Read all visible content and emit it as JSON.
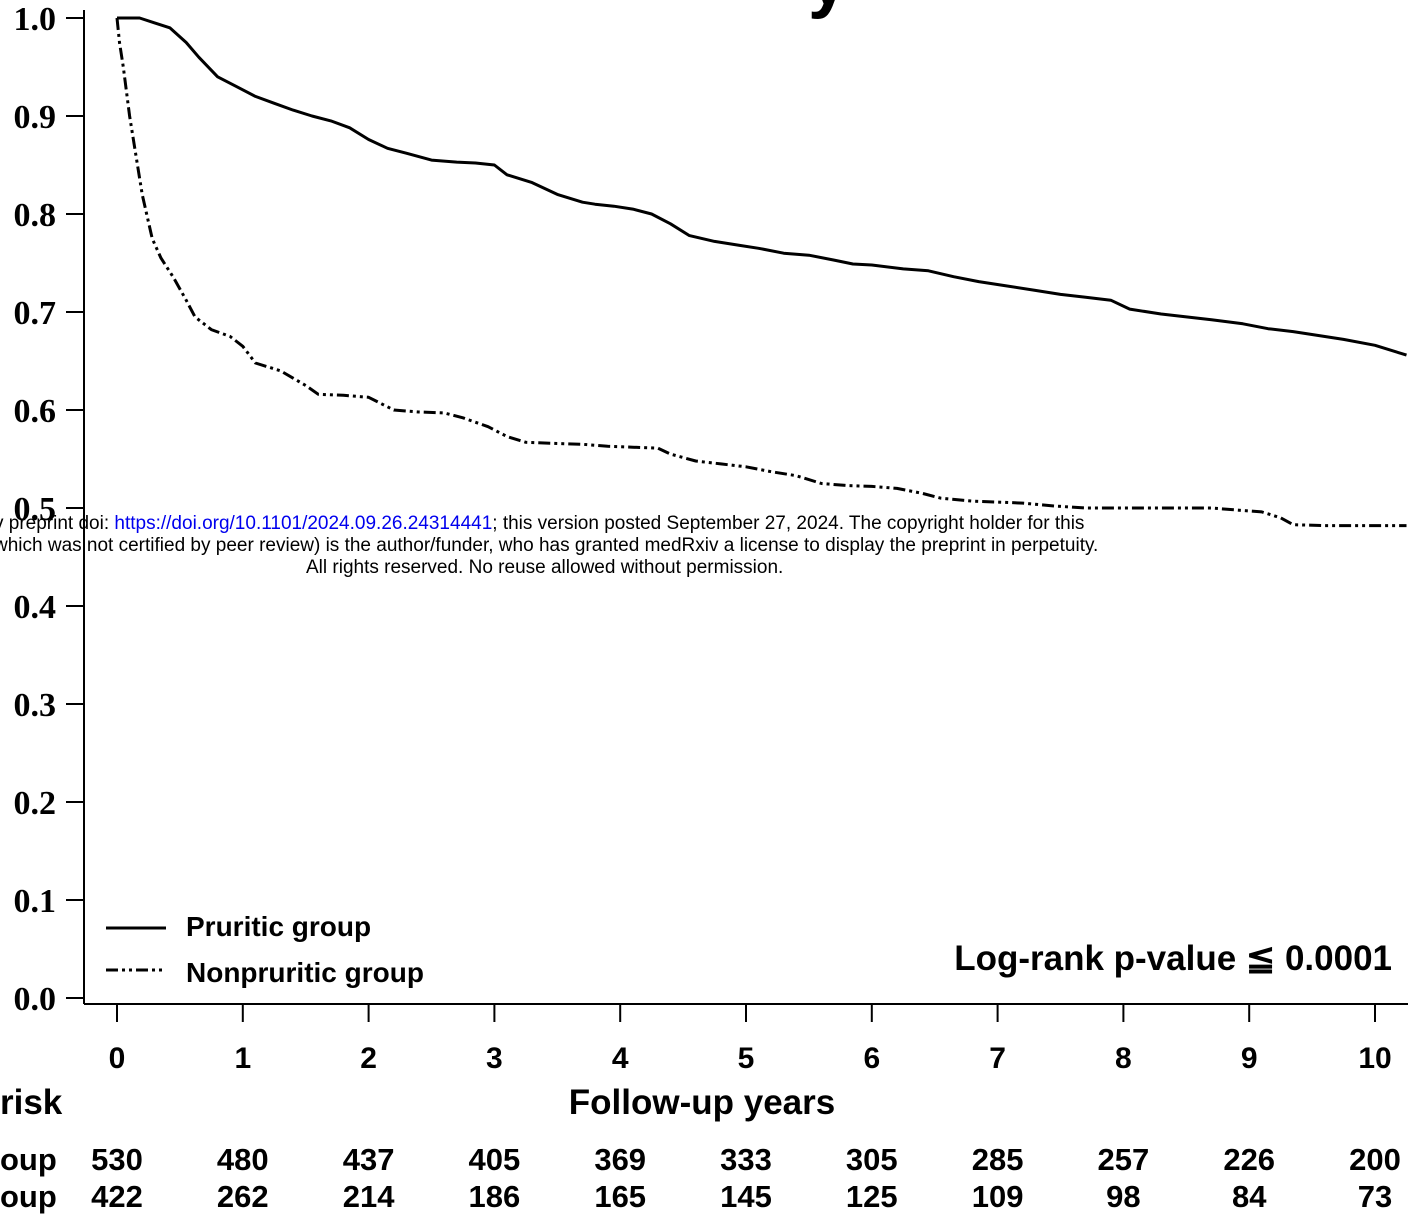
{
  "chart_data": {
    "type": "line",
    "title_fragment": "y",
    "xlabel": "Follow-up years",
    "ylabel": "",
    "xlim": [
      0,
      10.25
    ],
    "ylim": [
      0,
      1.0
    ],
    "x_ticks": [
      "0",
      "1",
      "2",
      "3",
      "4",
      "5",
      "6",
      "7",
      "8",
      "9",
      "10"
    ],
    "y_ticks": [
      "0.0",
      "0.1",
      "0.2",
      "0.3",
      "0.4",
      "0.5",
      "0.6",
      "0.7",
      "0.8",
      "0.9",
      "1.0"
    ],
    "grid": false,
    "legend_position": "bottom-left",
    "annotation": "Log-rank p-value ≦ 0.0001",
    "series": [
      {
        "name": "Pruritic group",
        "line_style": "solid",
        "x": [
          0,
          0.1,
          0.18,
          0.3,
          0.42,
          0.55,
          0.65,
          0.8,
          0.95,
          1.1,
          1.25,
          1.4,
          1.55,
          1.7,
          1.85,
          2.0,
          2.15,
          2.3,
          2.5,
          2.7,
          2.85,
          3.0,
          3.1,
          3.3,
          3.5,
          3.7,
          3.8,
          3.95,
          4.1,
          4.25,
          4.4,
          4.55,
          4.75,
          4.95,
          5.1,
          5.3,
          5.5,
          5.7,
          5.85,
          6.0,
          6.25,
          6.45,
          6.65,
          6.85,
          7.05,
          7.3,
          7.5,
          7.7,
          7.9,
          8.05,
          8.3,
          8.5,
          8.7,
          8.95,
          9.15,
          9.35,
          9.55,
          9.75,
          10.0,
          10.25
        ],
        "y": [
          1.0,
          1.0,
          1.0,
          0.995,
          0.99,
          0.975,
          0.96,
          0.94,
          0.93,
          0.92,
          0.913,
          0.906,
          0.9,
          0.895,
          0.888,
          0.876,
          0.867,
          0.862,
          0.855,
          0.853,
          0.852,
          0.85,
          0.84,
          0.832,
          0.82,
          0.812,
          0.81,
          0.808,
          0.805,
          0.8,
          0.79,
          0.778,
          0.772,
          0.768,
          0.765,
          0.76,
          0.758,
          0.753,
          0.749,
          0.748,
          0.744,
          0.742,
          0.736,
          0.731,
          0.727,
          0.722,
          0.718,
          0.715,
          0.712,
          0.703,
          0.698,
          0.695,
          0.692,
          0.688,
          0.683,
          0.68,
          0.676,
          0.672,
          0.666,
          0.656
        ]
      },
      {
        "name": "Nonpruritic group",
        "line_style": "dash-dot-dot",
        "x": [
          0,
          0.02,
          0.05,
          0.1,
          0.15,
          0.2,
          0.28,
          0.35,
          0.45,
          0.55,
          0.62,
          0.75,
          0.9,
          1.0,
          1.1,
          1.3,
          1.5,
          1.6,
          1.8,
          2.0,
          2.2,
          2.4,
          2.6,
          2.75,
          2.95,
          3.1,
          3.25,
          3.45,
          3.7,
          3.9,
          4.1,
          4.3,
          4.4,
          4.6,
          4.8,
          5.0,
          5.2,
          5.4,
          5.6,
          5.8,
          6.0,
          6.2,
          6.4,
          6.55,
          6.8,
          7.0,
          7.2,
          7.45,
          7.7,
          8.0,
          8.3,
          8.7,
          8.9,
          9.1,
          9.25,
          9.35,
          9.6,
          10.25
        ],
        "y": [
          1.0,
          0.975,
          0.95,
          0.9,
          0.86,
          0.82,
          0.775,
          0.755,
          0.735,
          0.712,
          0.695,
          0.682,
          0.675,
          0.665,
          0.648,
          0.64,
          0.625,
          0.616,
          0.615,
          0.613,
          0.6,
          0.598,
          0.597,
          0.592,
          0.583,
          0.573,
          0.567,
          0.566,
          0.565,
          0.563,
          0.562,
          0.561,
          0.555,
          0.548,
          0.545,
          0.542,
          0.537,
          0.533,
          0.525,
          0.523,
          0.522,
          0.52,
          0.515,
          0.51,
          0.507,
          0.506,
          0.505,
          0.502,
          0.5,
          0.5,
          0.5,
          0.5,
          0.498,
          0.496,
          0.49,
          0.483,
          0.482,
          0.482
        ]
      }
    ],
    "risk_table": {
      "title_fragment": "risk",
      "rows": [
        {
          "label_fragment": "oup",
          "values": [
            "530",
            "480",
            "437",
            "405",
            "369",
            "333",
            "305",
            "285",
            "257",
            "226",
            "200"
          ]
        },
        {
          "label_fragment": "oup",
          "values": [
            "422",
            "262",
            "214",
            "186",
            "165",
            "145",
            "125",
            "109",
            "98",
            "84",
            "73"
          ]
        }
      ]
    }
  },
  "overlay_notice": {
    "line1_prefix": "v preprint doi: ",
    "line1_link": "https://doi.org/10.1101/2024.09.26.24314441",
    "line1_suffix": "; this version posted September 27, 2024. The copyright holder for this",
    "line2": "which was not certified by peer review) is the author/funder, who has granted medRxiv a license to display the preprint in perpetuity.",
    "line3": "All rights reserved. No reuse allowed without permission."
  }
}
